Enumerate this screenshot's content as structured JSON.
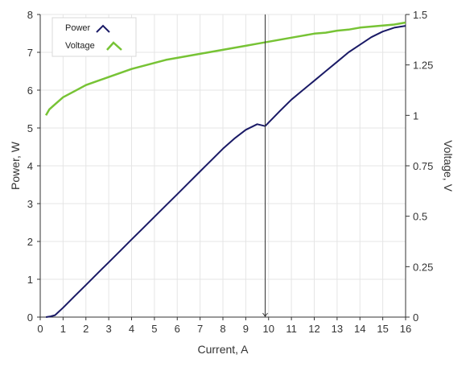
{
  "chart_data": {
    "type": "line",
    "title": "",
    "xlabel": "Current, A",
    "ylabel_left": "Power, W",
    "ylabel_right": "Voltage, V",
    "xlim": [
      0,
      16
    ],
    "ylim_left": [
      0,
      8
    ],
    "ylim_right": [
      0,
      1.5
    ],
    "x_ticks": [
      "0",
      "1",
      "2",
      "3",
      "4",
      "5",
      "6",
      "7",
      "8",
      "9",
      "10",
      "11",
      "12",
      "13",
      "14",
      "15",
      "16"
    ],
    "y_left_ticks": [
      "0",
      "1",
      "2",
      "3",
      "4",
      "5",
      "6",
      "7",
      "8"
    ],
    "y_right_ticks": [
      "0",
      "0.25",
      "0.5",
      "0.75",
      "1",
      "1.25",
      "1.5"
    ],
    "grid": true,
    "legend_position": "top-left",
    "cursor_x": 9.85,
    "series": [
      {
        "name": "Power",
        "axis": "left",
        "color": "#1a1a66",
        "x": [
          0.25,
          0.45,
          0.65,
          1.0,
          1.5,
          2.0,
          2.5,
          3.0,
          3.5,
          4.0,
          4.5,
          5.0,
          5.5,
          6.0,
          6.5,
          7.0,
          7.5,
          8.0,
          8.5,
          9.0,
          9.5,
          9.85,
          10.5,
          11.0,
          11.5,
          12.0,
          12.5,
          13.0,
          13.5,
          14.0,
          14.5,
          15.0,
          15.5,
          16.0
        ],
        "values": [
          0.0,
          0.02,
          0.05,
          0.25,
          0.55,
          0.85,
          1.15,
          1.45,
          1.75,
          2.05,
          2.35,
          2.65,
          2.95,
          3.25,
          3.55,
          3.85,
          4.15,
          4.45,
          4.72,
          4.95,
          5.1,
          5.05,
          5.45,
          5.75,
          6.0,
          6.25,
          6.5,
          6.75,
          7.0,
          7.2,
          7.4,
          7.55,
          7.65,
          7.7
        ]
      },
      {
        "name": "Voltage",
        "axis": "right",
        "color": "#77c335",
        "x": [
          0.25,
          0.4,
          0.6,
          0.8,
          1.0,
          1.5,
          2.0,
          2.5,
          3.0,
          3.5,
          4.0,
          4.5,
          5.0,
          5.5,
          6.0,
          6.5,
          7.0,
          7.5,
          8.0,
          8.5,
          9.0,
          9.5,
          10.0,
          10.5,
          11.0,
          11.5,
          12.0,
          12.5,
          13.0,
          13.5,
          14.0,
          14.5,
          15.0,
          15.5,
          16.0
        ],
        "values": [
          1.0,
          1.03,
          1.05,
          1.07,
          1.09,
          1.12,
          1.15,
          1.17,
          1.19,
          1.21,
          1.23,
          1.245,
          1.26,
          1.275,
          1.285,
          1.295,
          1.305,
          1.315,
          1.325,
          1.335,
          1.345,
          1.355,
          1.365,
          1.375,
          1.385,
          1.395,
          1.405,
          1.41,
          1.42,
          1.425,
          1.435,
          1.44,
          1.445,
          1.45,
          1.46
        ]
      }
    ]
  },
  "colors": {
    "power": "#1a1a66",
    "voltage": "#77c335",
    "grid": "#e5e5e5",
    "axis": "#333333",
    "cursor": "#333333"
  }
}
